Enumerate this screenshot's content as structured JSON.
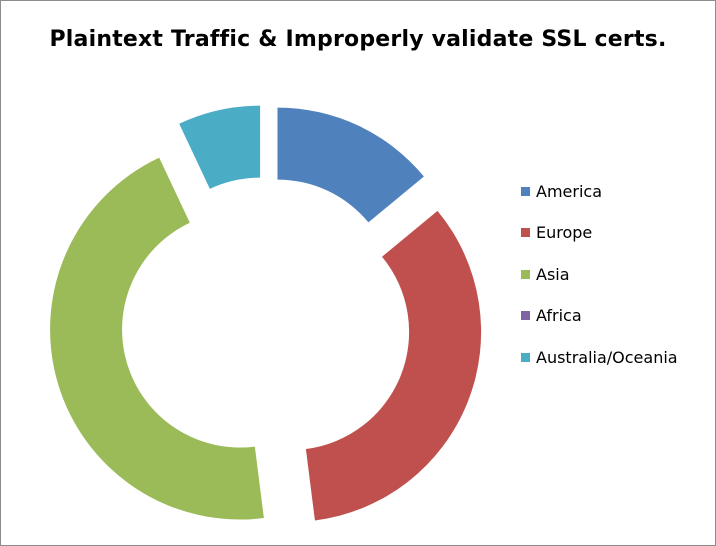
{
  "chart_data": {
    "type": "pie",
    "style": "exploded-doughnut",
    "title": "Plaintext Traffic & Improperly validate SSL certs.",
    "categories": [
      "America",
      "Europe",
      "Asia",
      "Africa",
      "Australia/Oceania"
    ],
    "values": [
      14,
      34,
      45,
      0,
      7
    ],
    "unit": "%",
    "colors": [
      "#4f81bd",
      "#c0504d",
      "#9bbb59",
      "#8064a2",
      "#4bacc6"
    ],
    "legend_position": "right",
    "start_angle_deg": 0,
    "direction": "clockwise"
  }
}
